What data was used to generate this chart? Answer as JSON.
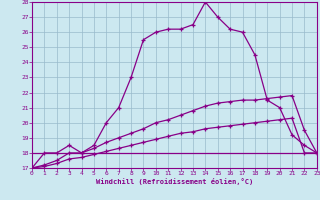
{
  "xlabel": "Windchill (Refroidissement éolien,°C)",
  "x_hours": [
    0,
    1,
    2,
    3,
    4,
    5,
    6,
    7,
    8,
    9,
    10,
    11,
    12,
    13,
    14,
    15,
    16,
    17,
    18,
    19,
    20,
    21,
    22,
    23
  ],
  "series1": [
    17,
    18,
    18,
    18.5,
    18,
    18.5,
    20,
    21,
    23,
    25.5,
    26,
    26.2,
    26.2,
    26.5,
    28,
    27,
    26.2,
    26,
    24.5,
    21.5,
    21,
    19.2,
    18.5,
    18
  ],
  "series2": [
    17,
    17.2,
    17.5,
    18,
    18,
    18.3,
    18.7,
    19,
    19.3,
    19.6,
    20,
    20.2,
    20.5,
    20.8,
    21.1,
    21.3,
    21.4,
    21.5,
    21.5,
    21.6,
    21.7,
    21.8,
    19.5,
    18
  ],
  "series3": [
    17,
    17.1,
    17.3,
    17.6,
    17.7,
    17.9,
    18.1,
    18.3,
    18.5,
    18.7,
    18.9,
    19.1,
    19.3,
    19.4,
    19.6,
    19.7,
    19.8,
    19.9,
    20.0,
    20.1,
    20.2,
    20.3,
    18,
    18
  ],
  "series4_flat": [
    18,
    18,
    18,
    18,
    18,
    18,
    18,
    18,
    18,
    18,
    18,
    18,
    18,
    18,
    18,
    18,
    18,
    18,
    18,
    18,
    18,
    18,
    18,
    18
  ],
  "series4_flat_end": 10,
  "line_color": "#880088",
  "bg_color": "#cce8f0",
  "grid_color": "#99bbcc",
  "ylim": [
    17,
    28
  ],
  "xlim": [
    0,
    23
  ]
}
